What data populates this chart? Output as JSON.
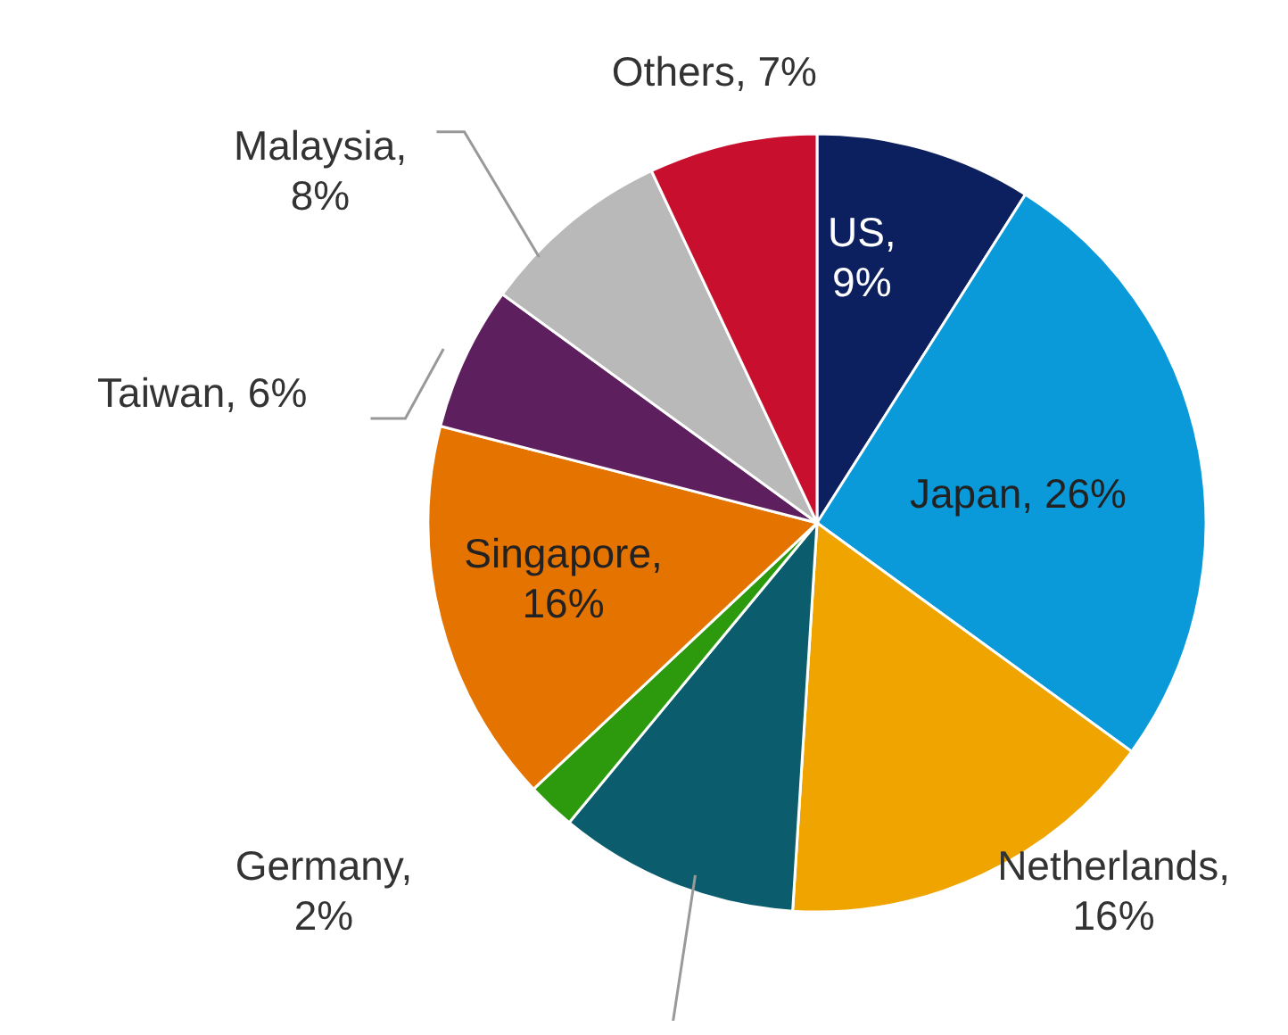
{
  "chart_data": {
    "type": "pie",
    "categories": [
      "US, 9%",
      "Japan, 26%",
      "Netherlands, 16%",
      null,
      "Germany, 2%",
      "Singapore, 16%",
      "Taiwan, 6%",
      "Malaysia, 8%",
      "Others, 7%"
    ],
    "values": [
      9,
      26,
      16,
      10,
      2,
      16,
      6,
      8,
      7
    ],
    "colors": [
      "#0c1f5e",
      "#0b9ad9",
      "#f0a400",
      "#0b5d6e",
      "#2c9a0c",
      "#e57300",
      "#5e1f5e",
      "#b9b9b9",
      "#c8102e"
    ]
  }
}
